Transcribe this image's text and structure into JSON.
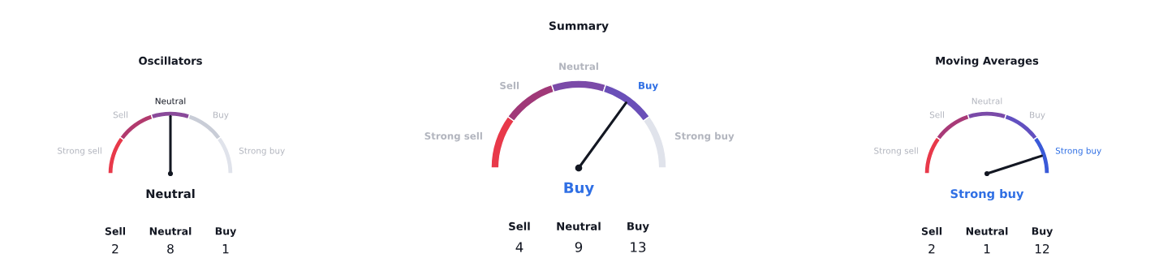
{
  "chart_data": [
    {
      "type": "donut",
      "title": "Summary",
      "categories": [
        "Strong sell",
        "Sell",
        "Neutral",
        "Buy",
        "Strong buy"
      ],
      "values": [
        20,
        20,
        20,
        20,
        20
      ],
      "colors": [
        "#e8394a",
        "#a03878",
        "#7b4aa8",
        "#6a4fb8",
        "#e0e3eb"
      ],
      "needle": "Buy",
      "annotations": [
        "Buy",
        "Sell",
        "Neutral",
        "Buy",
        "4",
        "9",
        "13"
      ]
    },
    {
      "type": "donut",
      "title": "Oscillators",
      "categories": [
        "Strong sell",
        "Sell",
        "Neutral",
        "Buy",
        "Strong buy"
      ],
      "values": [
        20,
        20,
        20,
        20,
        20
      ],
      "colors": [
        "#e8394a",
        "#b23a6e",
        "#8a4a9a",
        "#c9cdd7",
        "#e0e3eb"
      ],
      "needle": "Neutral",
      "annotations": [
        "Neutral",
        "Sell",
        "Neutral",
        "Buy",
        "2",
        "8",
        "1"
      ]
    },
    {
      "type": "donut",
      "title": "Moving Averages",
      "categories": [
        "Strong sell",
        "Sell",
        "Neutral",
        "Buy",
        "Strong buy"
      ],
      "values": [
        20,
        20,
        20,
        20,
        20
      ],
      "colors": [
        "#e8394a",
        "#a83a78",
        "#7a4aa8",
        "#6250c0",
        "#3a5ad8"
      ],
      "needle": "Strong buy",
      "annotations": [
        "Strong buy",
        "Sell",
        "Neutral",
        "Buy",
        "2",
        "1",
        "12"
      ]
    }
  ]
}
